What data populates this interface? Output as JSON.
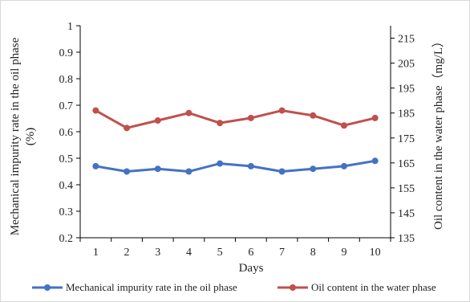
{
  "chart_data": {
    "type": "line",
    "xlabel": "Days",
    "ylabel_left_line1": "Mechanical impurity rate in the oil phase",
    "ylabel_left_line2": "(%)",
    "ylabel_right": "Oil content in the water phase（mg/L）",
    "x": [
      1,
      2,
      3,
      4,
      5,
      6,
      7,
      8,
      9,
      10
    ],
    "ylim_left": [
      0.2,
      1
    ],
    "yticks_left": [
      "0.2",
      "0.3",
      "0.4",
      "0.5",
      "0.6",
      "0.7",
      "0.8",
      "0.9",
      "1"
    ],
    "ylim_right": [
      135,
      220
    ],
    "yticks_right": [
      "135",
      "145",
      "155",
      "165",
      "175",
      "185",
      "195",
      "205",
      "215"
    ],
    "grid": false,
    "legend_position": "bottom",
    "series": [
      {
        "name": "Mechanical impurity rate in the oil phase",
        "axis": "left",
        "color": "#4472c4",
        "values": [
          0.47,
          0.45,
          0.46,
          0.45,
          0.48,
          0.47,
          0.45,
          0.46,
          0.47,
          0.49
        ]
      },
      {
        "name": "Oil content in the water phase",
        "axis": "right",
        "color": "#c0504d",
        "values": [
          186,
          179,
          182,
          185,
          181,
          183,
          186,
          184,
          180,
          183
        ]
      }
    ]
  }
}
